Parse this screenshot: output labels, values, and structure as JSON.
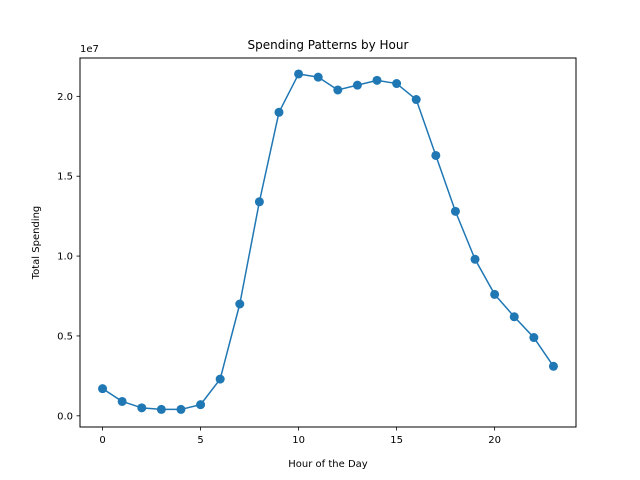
{
  "chart_data": {
    "type": "line",
    "title": "Spending Patterns by Hour",
    "xlabel": "Hour of the Day",
    "ylabel": "Total Spending",
    "y_offset_label": "1e7",
    "xlim": [
      -1.15,
      24.15
    ],
    "ylim": [
      -0.07,
      2.24
    ],
    "y_unit_multiplier": 10000000,
    "x_ticks": [
      0,
      5,
      10,
      15,
      20
    ],
    "x_tick_labels": [
      "0",
      "5",
      "10",
      "15",
      "20"
    ],
    "y_ticks": [
      0.0,
      0.5,
      1.0,
      1.5,
      2.0
    ],
    "y_tick_labels": [
      "0.0",
      "0.5",
      "1.0",
      "1.5",
      "2.0"
    ],
    "grid": false,
    "series": [
      {
        "color": "#1f77b4",
        "marker": "circle",
        "x": [
          0,
          1,
          2,
          3,
          4,
          5,
          6,
          7,
          8,
          9,
          10,
          11,
          12,
          13,
          14,
          15,
          16,
          17,
          18,
          19,
          20,
          21,
          22,
          23
        ],
        "values": [
          0.17,
          0.09,
          0.05,
          0.04,
          0.04,
          0.07,
          0.23,
          0.7,
          1.34,
          1.9,
          2.14,
          2.12,
          2.04,
          2.07,
          2.1,
          2.08,
          1.98,
          1.63,
          1.28,
          0.98,
          0.76,
          0.62,
          0.49,
          0.31
        ]
      }
    ]
  }
}
